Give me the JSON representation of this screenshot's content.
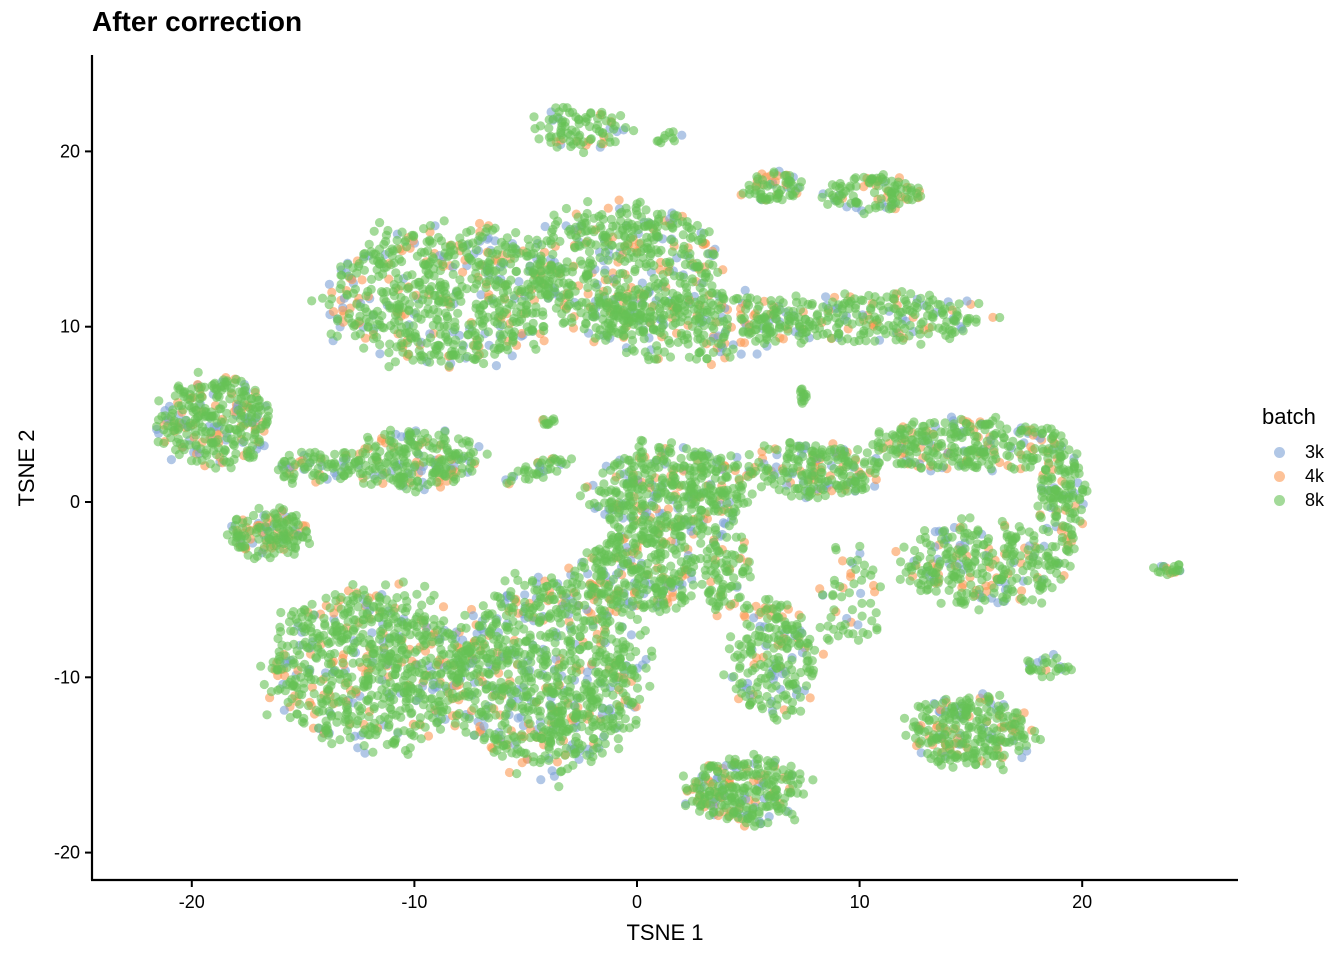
{
  "chart_data": {
    "type": "scatter",
    "title": "After correction",
    "xlabel": "TSNE 1",
    "ylabel": "TSNE 2",
    "xlim": [
      -24.5,
      27
    ],
    "ylim": [
      -21.5,
      25.5
    ],
    "x_ticks": [
      -20,
      -10,
      0,
      10,
      20
    ],
    "y_ticks": [
      -20,
      -10,
      0,
      10,
      20
    ],
    "x_tick_labels": [
      "-20",
      "-10",
      "0",
      "10",
      "20"
    ],
    "y_tick_labels": [
      "-20",
      "-10",
      "0",
      "10",
      "20"
    ],
    "grid": false,
    "legend": {
      "title": "batch",
      "position": "right",
      "entries": [
        {
          "label": "3k",
          "color": "#7DA2D6"
        },
        {
          "label": "4k",
          "color": "#FC9A54"
        },
        {
          "label": "8k",
          "color": "#66C255"
        }
      ]
    },
    "point_alpha": 0.6,
    "series": [
      {
        "name": "3k",
        "color": "#7DA2D6"
      },
      {
        "name": "4k",
        "color": "#FC9A54"
      },
      {
        "name": "8k",
        "color": "#66C255"
      }
    ],
    "clusters": [
      {
        "id": "top-small",
        "cx": -2.5,
        "cy": 21.3,
        "rx": 2.2,
        "ry": 1.4,
        "n": 90
      },
      {
        "id": "top-small-tail",
        "cx": 1.5,
        "cy": 20.7,
        "rx": 0.8,
        "ry": 0.4,
        "n": 10
      },
      {
        "id": "upper-left-blob",
        "cx": -8.5,
        "cy": 11.8,
        "rx": 5.5,
        "ry": 4.2,
        "n": 700
      },
      {
        "id": "upper-mid-blob",
        "cx": -0.5,
        "cy": 13.5,
        "rx": 4.5,
        "ry": 3.8,
        "n": 520
      },
      {
        "id": "upper-mid-lower",
        "cx": 2.5,
        "cy": 10.0,
        "rx": 5.0,
        "ry": 2.2,
        "n": 300
      },
      {
        "id": "upper-right-tail",
        "cx": 10.5,
        "cy": 10.5,
        "rx": 5.5,
        "ry": 1.5,
        "n": 260
      },
      {
        "id": "upper-right-top-left",
        "cx": 6.0,
        "cy": 18.0,
        "rx": 1.6,
        "ry": 0.9,
        "n": 70
      },
      {
        "id": "upper-right-top-ring",
        "cx": 10.5,
        "cy": 17.6,
        "rx": 2.4,
        "ry": 1.0,
        "n": 110
      },
      {
        "id": "left-blob-a",
        "cx": -19.0,
        "cy": 4.6,
        "rx": 2.8,
        "ry": 2.7,
        "n": 320
      },
      {
        "id": "left-blob-b",
        "cx": -16.5,
        "cy": -1.8,
        "rx": 1.9,
        "ry": 1.5,
        "n": 150
      },
      {
        "id": "left-blob-bridge",
        "cx": -14.5,
        "cy": 2.0,
        "rx": 2.0,
        "ry": 1.0,
        "n": 80
      },
      {
        "id": "left-blob-c",
        "cx": -10.0,
        "cy": 2.4,
        "rx": 3.2,
        "ry": 1.8,
        "n": 240
      },
      {
        "id": "center-streak",
        "cx": -4.5,
        "cy": 1.8,
        "rx": 1.8,
        "ry": 0.5,
        "n": 40,
        "angle": 25
      },
      {
        "id": "center-dot",
        "cx": -4.0,
        "cy": 4.6,
        "rx": 0.4,
        "ry": 0.2,
        "n": 10
      },
      {
        "id": "mid-spike",
        "cx": 7.5,
        "cy": 6.0,
        "rx": 0.2,
        "ry": 0.7,
        "n": 12
      },
      {
        "id": "center-blob",
        "cx": 1.5,
        "cy": 0.5,
        "rx": 3.6,
        "ry": 3.0,
        "n": 450
      },
      {
        "id": "center-right",
        "cx": 8.0,
        "cy": 1.8,
        "rx": 3.2,
        "ry": 1.7,
        "n": 230
      },
      {
        "id": "right-ring-top",
        "cx": 15.0,
        "cy": 3.2,
        "rx": 4.5,
        "ry": 1.6,
        "n": 300
      },
      {
        "id": "right-ring-bottom",
        "cx": 15.5,
        "cy": -3.6,
        "rx": 3.8,
        "ry": 2.5,
        "n": 300
      },
      {
        "id": "right-ring-side",
        "cx": 19.0,
        "cy": 0.0,
        "rx": 1.2,
        "ry": 3.2,
        "n": 140
      },
      {
        "id": "far-right-small",
        "cx": 23.8,
        "cy": -3.8,
        "rx": 0.8,
        "ry": 0.4,
        "n": 20
      },
      {
        "id": "lower-left-blob",
        "cx": -12.0,
        "cy": -9.5,
        "rx": 4.8,
        "ry": 4.8,
        "n": 750
      },
      {
        "id": "lower-mid-blob",
        "cx": -4.0,
        "cy": -9.8,
        "rx": 4.5,
        "ry": 5.6,
        "n": 900
      },
      {
        "id": "lower-mid-upper",
        "cx": 0.0,
        "cy": -4.0,
        "rx": 3.0,
        "ry": 2.5,
        "n": 300
      },
      {
        "id": "lower-center-right",
        "cx": 6.0,
        "cy": -9.0,
        "rx": 2.2,
        "ry": 3.5,
        "n": 220
      },
      {
        "id": "lower-center-mid",
        "cx": 4.0,
        "cy": -4.0,
        "rx": 1.2,
        "ry": 2.5,
        "n": 90
      },
      {
        "id": "bottom-blob",
        "cx": 4.8,
        "cy": -16.5,
        "rx": 2.8,
        "ry": 2.0,
        "n": 280
      },
      {
        "id": "lower-right-blob",
        "cx": 15.0,
        "cy": -13.0,
        "rx": 3.0,
        "ry": 2.2,
        "n": 280
      },
      {
        "id": "lower-right-tail",
        "cx": 18.5,
        "cy": -9.3,
        "rx": 1.0,
        "ry": 0.8,
        "n": 30
      },
      {
        "id": "lower-middle-loose",
        "cx": 9.5,
        "cy": -5.5,
        "rx": 1.6,
        "ry": 3.5,
        "n": 60
      }
    ]
  },
  "legend": {
    "title": "batch",
    "items": [
      {
        "label": "3k",
        "color": "#7DA2D6"
      },
      {
        "label": "4k",
        "color": "#FC9A54"
      },
      {
        "label": "8k",
        "color": "#66C255"
      }
    ]
  }
}
